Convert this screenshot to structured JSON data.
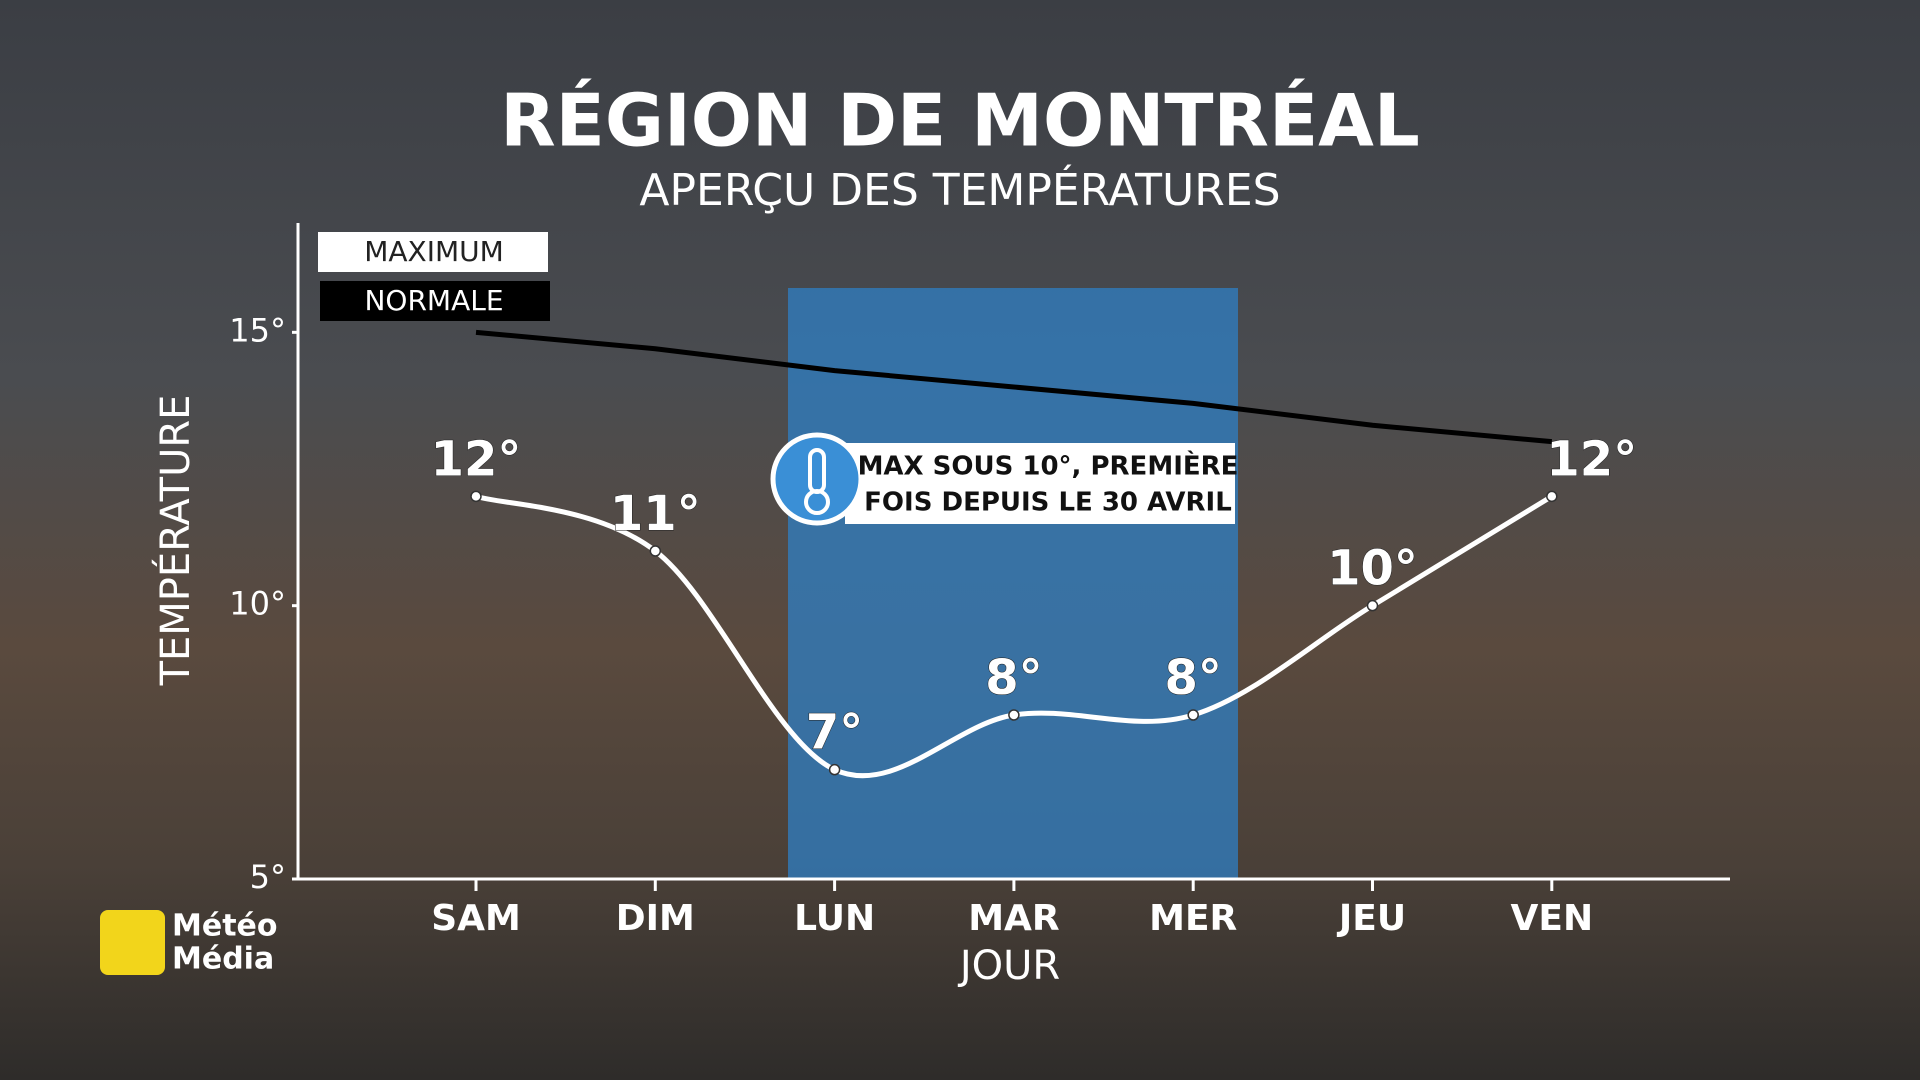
{
  "chart_data": {
    "type": "line",
    "title": "RÉGION DE MONTRÉAL",
    "subtitle": "APERÇU DES TEMPÉRATURES",
    "x_label": "JOUR",
    "y_label": "TEMPÉRATURE",
    "categories": [
      "SAM",
      "DIM",
      "LUN",
      "MAR",
      "MER",
      "JEU",
      "VEN"
    ],
    "series": [
      {
        "name": "MAXIMUM",
        "color": "#ffffff",
        "values": [
          12,
          11,
          7,
          8,
          8,
          10,
          12
        ],
        "value_labels": [
          "12°",
          "11°",
          "7°",
          "8°",
          "8°",
          "10°",
          "12°"
        ]
      },
      {
        "name": "NORMALE",
        "color": "#000000",
        "values": [
          15,
          14.7,
          14.3,
          14,
          13.7,
          13.3,
          13
        ]
      }
    ],
    "ylim": [
      5,
      17
    ],
    "yticks": [
      {
        "value": 5,
        "label": "5°"
      },
      {
        "value": 10,
        "label": "10°"
      },
      {
        "value": 15,
        "label": "15°"
      }
    ],
    "annotation": [
      "MAX SOUS 10°, PREMIÈRE",
      "FOIS DEPUIS LE 30 AVRIL"
    ],
    "logo": [
      "Météo",
      "Média"
    ]
  }
}
